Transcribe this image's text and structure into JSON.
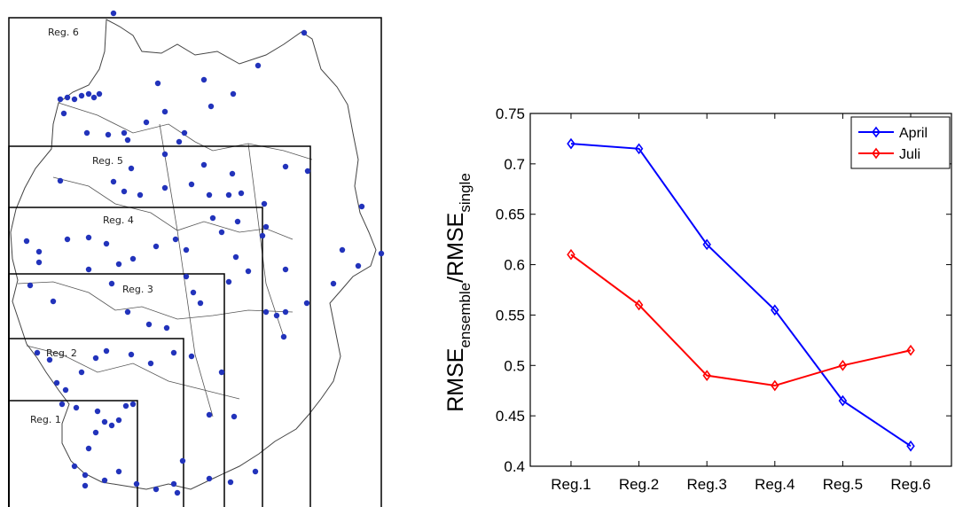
{
  "map": {
    "regions": [
      {
        "name": "Reg. 1"
      },
      {
        "name": "Reg. 2"
      },
      {
        "name": "Reg. 3"
      },
      {
        "name": "Reg. 4"
      },
      {
        "name": "Reg. 5"
      },
      {
        "name": "Reg. 6"
      }
    ],
    "colors": {
      "station": "#2233bb",
      "border": "#444444",
      "box": "#000000"
    }
  },
  "chart_data": {
    "type": "line",
    "categories": [
      "Reg.1",
      "Reg.2",
      "Reg.3",
      "Reg.4",
      "Reg.5",
      "Reg.6"
    ],
    "series": [
      {
        "name": "April",
        "values": [
          0.72,
          0.715,
          0.62,
          0.555,
          0.465,
          0.42
        ],
        "color": "#0000ff",
        "marker": "diamond"
      },
      {
        "name": "Juli",
        "values": [
          0.61,
          0.56,
          0.49,
          0.48,
          0.5,
          0.515
        ],
        "color": "#ff0000",
        "marker": "diamond"
      }
    ],
    "ylabel": {
      "main": "RMSE",
      "sub1": "ensemble",
      "sep": "/RMSE",
      "sub2": "single"
    },
    "xlabel": "",
    "title": "",
    "ylim": [
      0.4,
      0.75
    ],
    "yticks": [
      "0.4",
      "0.45",
      "0.5",
      "0.55",
      "0.6",
      "0.65",
      "0.7",
      "0.75"
    ],
    "grid": false,
    "legend_position": "top-right"
  }
}
